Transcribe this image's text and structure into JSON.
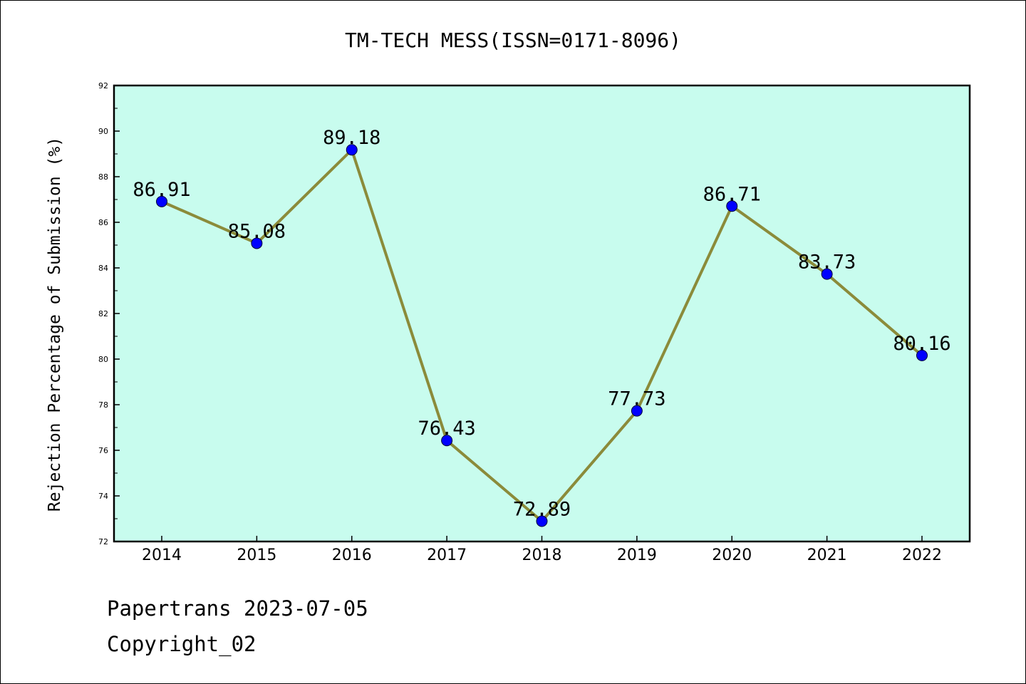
{
  "chart_data": {
    "type": "line",
    "title": "TM-TECH MESS(ISSN=0171-8096)",
    "xlabel": "",
    "ylabel": "Rejection Percentage of Submission (%)",
    "categories": [
      "2014",
      "2015",
      "2016",
      "2017",
      "2018",
      "2019",
      "2020",
      "2021",
      "2022"
    ],
    "series": [
      {
        "values": [
          86.91,
          85.08,
          89.18,
          76.43,
          72.89,
          77.73,
          86.71,
          83.73,
          80.16
        ],
        "labels": [
          "86.91",
          "85.08",
          "89.18",
          "76.43",
          "72.89",
          "77.73",
          "86.71",
          "83.73",
          "80.16"
        ]
      }
    ],
    "ylim": [
      72,
      92
    ],
    "yticks": [
      "72",
      "74",
      "76",
      "78",
      "80",
      "82",
      "84",
      "86",
      "88",
      "90",
      "92"
    ],
    "grid": false,
    "legend": "none",
    "colors": {
      "plot_background": "#c8fcee",
      "line": "#8b8b3a",
      "marker": "#0000ff"
    }
  },
  "footer": {
    "line1": "Papertrans 2023-07-05",
    "line2": "Copyright_02"
  }
}
